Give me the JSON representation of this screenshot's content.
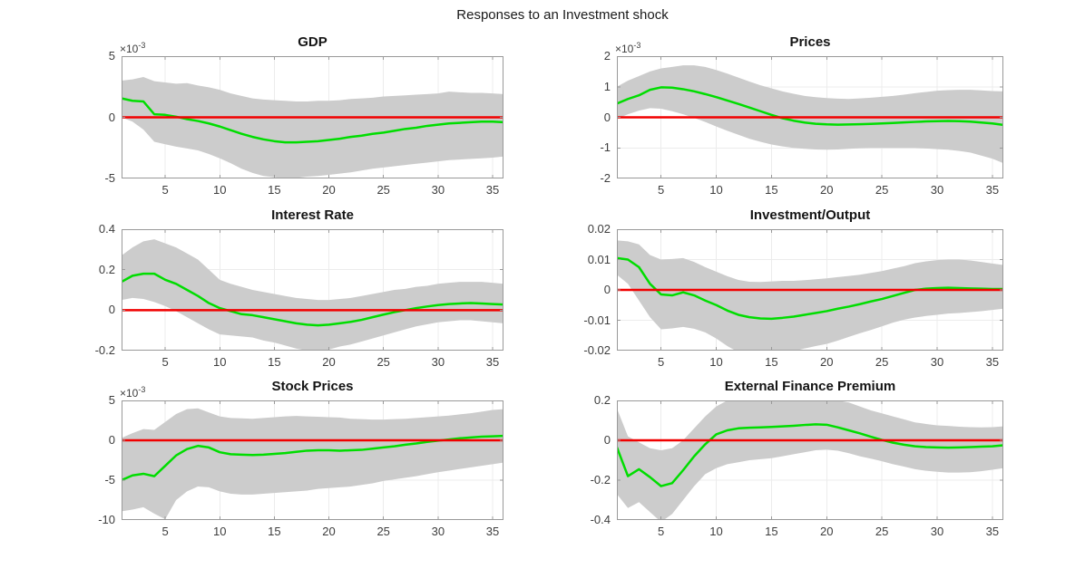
{
  "figure": {
    "title": "Responses to an Investment shock",
    "background": "#ffffff",
    "colors": {
      "median": "#00dd00",
      "zero_line": "#f10000",
      "band": "#cccccc",
      "grid": "#ececec",
      "axis": "#999999",
      "tick_text": "#3d3d3d",
      "title_text": "#141414"
    }
  },
  "chart_data": [
    {
      "type": "line",
      "title": "GDP",
      "exp": {
        "base": "×10",
        "power": "-3"
      },
      "xlim": [
        1,
        36
      ],
      "ylim": [
        -5,
        5
      ],
      "xticks": [
        5,
        10,
        15,
        20,
        25,
        30,
        35
      ],
      "xtick_labels": [
        "5",
        "10",
        "15",
        "20",
        "25",
        "30",
        "35"
      ],
      "yticks": [
        -5,
        0,
        5
      ],
      "ytick_labels": [
        "-5",
        "0",
        "5"
      ],
      "grid": true,
      "legend": null,
      "series": [
        {
          "name": "median",
          "values": [
            1.55,
            1.35,
            1.3,
            0.25,
            0.2,
            0.05,
            -0.15,
            -0.3,
            -0.5,
            -0.75,
            -1.05,
            -1.35,
            -1.6,
            -1.8,
            -1.95,
            -2.05,
            -2.05,
            -2.0,
            -1.95,
            -1.85,
            -1.75,
            -1.6,
            -1.5,
            -1.35,
            -1.25,
            -1.1,
            -0.95,
            -0.85,
            -0.7,
            -0.6,
            -0.5,
            -0.45,
            -0.4,
            -0.35,
            -0.35,
            -0.4
          ]
        },
        {
          "name": "band_upper",
          "values": [
            3.0,
            3.1,
            3.3,
            2.95,
            2.85,
            2.75,
            2.8,
            2.6,
            2.45,
            2.25,
            1.95,
            1.75,
            1.55,
            1.45,
            1.4,
            1.35,
            1.3,
            1.3,
            1.35,
            1.35,
            1.4,
            1.5,
            1.55,
            1.6,
            1.7,
            1.75,
            1.8,
            1.85,
            1.9,
            1.95,
            2.1,
            2.05,
            2.0,
            2.0,
            1.95,
            1.9
          ]
        },
        {
          "name": "band_lower",
          "values": [
            0.0,
            -0.35,
            -1.0,
            -2.0,
            -2.2,
            -2.4,
            -2.55,
            -2.7,
            -3.0,
            -3.35,
            -3.75,
            -4.2,
            -4.55,
            -4.8,
            -4.9,
            -5.0,
            -4.95,
            -4.85,
            -4.8,
            -4.7,
            -4.6,
            -4.5,
            -4.35,
            -4.2,
            -4.1,
            -4.0,
            -3.9,
            -3.8,
            -3.7,
            -3.6,
            -3.5,
            -3.45,
            -3.4,
            -3.35,
            -3.3,
            -3.2
          ]
        }
      ]
    },
    {
      "type": "line",
      "title": "Prices",
      "exp": {
        "base": "×10",
        "power": "-3"
      },
      "xlim": [
        1,
        36
      ],
      "ylim": [
        -2,
        2
      ],
      "xticks": [
        5,
        10,
        15,
        20,
        25,
        30,
        35
      ],
      "xtick_labels": [
        "5",
        "10",
        "15",
        "20",
        "25",
        "30",
        "35"
      ],
      "yticks": [
        -2,
        -1,
        0,
        1,
        2
      ],
      "ytick_labels": [
        "-2",
        "-1",
        "0",
        "1",
        "2"
      ],
      "grid": true,
      "legend": null,
      "series": [
        {
          "name": "median",
          "values": [
            0.45,
            0.6,
            0.72,
            0.9,
            0.98,
            0.97,
            0.92,
            0.85,
            0.76,
            0.66,
            0.55,
            0.44,
            0.32,
            0.2,
            0.08,
            -0.03,
            -0.11,
            -0.17,
            -0.21,
            -0.23,
            -0.24,
            -0.235,
            -0.225,
            -0.215,
            -0.2,
            -0.185,
            -0.165,
            -0.15,
            -0.135,
            -0.125,
            -0.12,
            -0.125,
            -0.14,
            -0.17,
            -0.2,
            -0.25
          ]
        },
        {
          "name": "band_upper",
          "values": [
            1.0,
            1.2,
            1.35,
            1.5,
            1.6,
            1.65,
            1.7,
            1.7,
            1.65,
            1.55,
            1.43,
            1.3,
            1.17,
            1.05,
            0.95,
            0.85,
            0.77,
            0.7,
            0.66,
            0.63,
            0.61,
            0.6,
            0.62,
            0.64,
            0.67,
            0.7,
            0.74,
            0.79,
            0.83,
            0.87,
            0.89,
            0.9,
            0.9,
            0.88,
            0.86,
            0.85
          ]
        },
        {
          "name": "band_lower",
          "values": [
            -0.05,
            0.1,
            0.22,
            0.3,
            0.28,
            0.2,
            0.1,
            -0.02,
            -0.15,
            -0.3,
            -0.44,
            -0.57,
            -0.7,
            -0.8,
            -0.89,
            -0.95,
            -1.0,
            -1.03,
            -1.05,
            -1.06,
            -1.05,
            -1.03,
            -1.01,
            -1.0,
            -1.0,
            -1.0,
            -1.0,
            -1.0,
            -1.02,
            -1.04,
            -1.06,
            -1.1,
            -1.15,
            -1.25,
            -1.35,
            -1.5
          ]
        }
      ]
    },
    {
      "type": "line",
      "title": "Interest Rate",
      "exp": null,
      "xlim": [
        1,
        36
      ],
      "ylim": [
        -0.2,
        0.4
      ],
      "xticks": [
        5,
        10,
        15,
        20,
        25,
        30,
        35
      ],
      "xtick_labels": [
        "5",
        "10",
        "15",
        "20",
        "25",
        "30",
        "35"
      ],
      "yticks": [
        -0.2,
        0,
        0.2,
        0.4
      ],
      "ytick_labels": [
        "-0.2",
        "0",
        "0.2",
        "0.4"
      ],
      "grid": true,
      "legend": null,
      "series": [
        {
          "name": "median",
          "values": [
            0.14,
            0.17,
            0.18,
            0.18,
            0.15,
            0.13,
            0.1,
            0.07,
            0.035,
            0.01,
            -0.005,
            -0.02,
            -0.025,
            -0.035,
            -0.045,
            -0.055,
            -0.065,
            -0.072,
            -0.075,
            -0.072,
            -0.065,
            -0.058,
            -0.048,
            -0.035,
            -0.022,
            -0.01,
            0.0,
            0.01,
            0.018,
            0.025,
            0.03,
            0.033,
            0.035,
            0.033,
            0.03,
            0.028
          ]
        },
        {
          "name": "band_upper",
          "values": [
            0.27,
            0.31,
            0.34,
            0.35,
            0.33,
            0.31,
            0.28,
            0.25,
            0.2,
            0.15,
            0.13,
            0.115,
            0.1,
            0.09,
            0.08,
            0.07,
            0.06,
            0.055,
            0.05,
            0.05,
            0.055,
            0.06,
            0.07,
            0.08,
            0.09,
            0.1,
            0.105,
            0.115,
            0.12,
            0.13,
            0.135,
            0.14,
            0.14,
            0.14,
            0.135,
            0.13
          ]
        },
        {
          "name": "band_lower",
          "values": [
            0.05,
            0.06,
            0.055,
            0.04,
            0.02,
            -0.005,
            -0.035,
            -0.065,
            -0.095,
            -0.12,
            -0.125,
            -0.13,
            -0.135,
            -0.15,
            -0.16,
            -0.175,
            -0.19,
            -0.2,
            -0.2,
            -0.195,
            -0.18,
            -0.17,
            -0.155,
            -0.14,
            -0.125,
            -0.11,
            -0.095,
            -0.08,
            -0.07,
            -0.06,
            -0.055,
            -0.05,
            -0.05,
            -0.055,
            -0.06,
            -0.065
          ]
        }
      ]
    },
    {
      "type": "line",
      "title": "Investment/Output",
      "exp": null,
      "xlim": [
        1,
        36
      ],
      "ylim": [
        -0.02,
        0.02
      ],
      "xticks": [
        5,
        10,
        15,
        20,
        25,
        30,
        35
      ],
      "xtick_labels": [
        "5",
        "10",
        "15",
        "20",
        "25",
        "30",
        "35"
      ],
      "yticks": [
        -0.02,
        -0.01,
        0,
        0.01,
        0.02
      ],
      "ytick_labels": [
        "-0.02",
        "-0.01",
        "0",
        "0.01",
        "0.02"
      ],
      "grid": true,
      "legend": null,
      "series": [
        {
          "name": "median",
          "values": [
            0.0105,
            0.01,
            0.0075,
            0.002,
            -0.0015,
            -0.0018,
            -0.0008,
            -0.0018,
            -0.0035,
            -0.005,
            -0.0068,
            -0.0082,
            -0.009,
            -0.0094,
            -0.0095,
            -0.0092,
            -0.0088,
            -0.0082,
            -0.0076,
            -0.007,
            -0.0062,
            -0.0055,
            -0.0047,
            -0.0038,
            -0.003,
            -0.002,
            -0.001,
            0.0,
            0.0004,
            0.0006,
            0.0007,
            0.0006,
            0.0005,
            0.0004,
            0.0003,
            0.0003
          ]
        },
        {
          "name": "band_upper",
          "values": [
            0.0163,
            0.016,
            0.015,
            0.0115,
            0.01,
            0.0102,
            0.0105,
            0.0092,
            0.0075,
            0.006,
            0.0045,
            0.0033,
            0.0027,
            0.0026,
            0.0028,
            0.003,
            0.003,
            0.0032,
            0.0035,
            0.0038,
            0.0042,
            0.0046,
            0.005,
            0.0056,
            0.0062,
            0.007,
            0.0078,
            0.0088,
            0.0094,
            0.0098,
            0.01,
            0.01,
            0.0097,
            0.0092,
            0.0087,
            0.0082
          ]
        },
        {
          "name": "band_lower",
          "values": [
            0.005,
            0.002,
            -0.0035,
            -0.009,
            -0.013,
            -0.0127,
            -0.0122,
            -0.0128,
            -0.014,
            -0.016,
            -0.0185,
            -0.0205,
            -0.0215,
            -0.022,
            -0.0215,
            -0.021,
            -0.0202,
            -0.0193,
            -0.0185,
            -0.0178,
            -0.0167,
            -0.0155,
            -0.0143,
            -0.0132,
            -0.012,
            -0.0108,
            -0.0098,
            -0.0091,
            -0.0086,
            -0.0082,
            -0.0078,
            -0.0076,
            -0.0073,
            -0.007,
            -0.0066,
            -0.0062
          ]
        }
      ]
    },
    {
      "type": "line",
      "title": "Stock Prices",
      "exp": {
        "base": "×10",
        "power": "-3"
      },
      "xlim": [
        1,
        36
      ],
      "ylim": [
        -10,
        5
      ],
      "xticks": [
        5,
        10,
        15,
        20,
        25,
        30,
        35
      ],
      "xtick_labels": [
        "5",
        "10",
        "15",
        "20",
        "25",
        "30",
        "35"
      ],
      "yticks": [
        -10,
        -5,
        0,
        5
      ],
      "ytick_labels": [
        "-10",
        "-5",
        "0",
        "5"
      ],
      "grid": true,
      "legend": null,
      "series": [
        {
          "name": "median",
          "values": [
            -5.0,
            -4.4,
            -4.2,
            -4.5,
            -3.2,
            -1.9,
            -1.1,
            -0.7,
            -0.9,
            -1.5,
            -1.75,
            -1.8,
            -1.85,
            -1.8,
            -1.7,
            -1.6,
            -1.45,
            -1.3,
            -1.25,
            -1.25,
            -1.3,
            -1.25,
            -1.2,
            -1.05,
            -0.9,
            -0.75,
            -0.55,
            -0.4,
            -0.2,
            -0.05,
            0.1,
            0.25,
            0.35,
            0.45,
            0.5,
            0.55
          ]
        },
        {
          "name": "band_upper",
          "values": [
            0.3,
            0.9,
            1.4,
            1.3,
            2.3,
            3.3,
            3.9,
            4.0,
            3.5,
            3.0,
            2.8,
            2.75,
            2.7,
            2.8,
            2.9,
            3.0,
            3.05,
            3.0,
            2.95,
            2.9,
            2.85,
            2.7,
            2.65,
            2.6,
            2.6,
            2.65,
            2.7,
            2.8,
            2.9,
            3.0,
            3.1,
            3.25,
            3.4,
            3.6,
            3.8,
            3.9
          ]
        },
        {
          "name": "band_lower",
          "values": [
            -8.9,
            -8.7,
            -8.4,
            -9.2,
            -9.9,
            -7.5,
            -6.4,
            -5.8,
            -5.9,
            -6.4,
            -6.7,
            -6.8,
            -6.8,
            -6.7,
            -6.6,
            -6.5,
            -6.4,
            -6.3,
            -6.1,
            -6.0,
            -5.9,
            -5.8,
            -5.6,
            -5.4,
            -5.1,
            -4.9,
            -4.7,
            -4.5,
            -4.25,
            -4.0,
            -3.8,
            -3.6,
            -3.4,
            -3.2,
            -3.0,
            -2.8
          ]
        }
      ]
    },
    {
      "type": "line",
      "title": "External Finance Premium",
      "exp": null,
      "xlim": [
        1,
        36
      ],
      "ylim": [
        -0.4,
        0.2
      ],
      "xticks": [
        5,
        10,
        15,
        20,
        25,
        30,
        35
      ],
      "xtick_labels": [
        "5",
        "10",
        "15",
        "20",
        "25",
        "30",
        "35"
      ],
      "yticks": [
        -0.4,
        -0.2,
        0,
        0.2
      ],
      "ytick_labels": [
        "-0.4",
        "-0.2",
        "0",
        "0.2"
      ],
      "grid": true,
      "legend": null,
      "series": [
        {
          "name": "median",
          "values": [
            -0.035,
            -0.18,
            -0.145,
            -0.185,
            -0.23,
            -0.215,
            -0.15,
            -0.08,
            -0.02,
            0.03,
            0.05,
            0.06,
            0.063,
            0.065,
            0.067,
            0.07,
            0.073,
            0.077,
            0.08,
            0.078,
            0.065,
            0.05,
            0.035,
            0.018,
            0.002,
            -0.012,
            -0.022,
            -0.03,
            -0.034,
            -0.036,
            -0.037,
            -0.036,
            -0.034,
            -0.032,
            -0.03,
            -0.025
          ]
        },
        {
          "name": "band_upper",
          "values": [
            0.16,
            0.02,
            -0.01,
            -0.04,
            -0.05,
            -0.04,
            0.0,
            0.06,
            0.12,
            0.17,
            0.2,
            0.21,
            0.215,
            0.215,
            0.215,
            0.215,
            0.215,
            0.215,
            0.215,
            0.21,
            0.2,
            0.19,
            0.17,
            0.15,
            0.135,
            0.12,
            0.105,
            0.09,
            0.082,
            0.075,
            0.072,
            0.068,
            0.066,
            0.065,
            0.066,
            0.07
          ]
        },
        {
          "name": "band_lower",
          "values": [
            -0.27,
            -0.34,
            -0.31,
            -0.36,
            -0.41,
            -0.37,
            -0.3,
            -0.23,
            -0.17,
            -0.14,
            -0.12,
            -0.11,
            -0.1,
            -0.095,
            -0.09,
            -0.08,
            -0.07,
            -0.06,
            -0.05,
            -0.047,
            -0.052,
            -0.065,
            -0.08,
            -0.092,
            -0.105,
            -0.12,
            -0.132,
            -0.145,
            -0.153,
            -0.158,
            -0.162,
            -0.162,
            -0.16,
            -0.155,
            -0.148,
            -0.14
          ]
        }
      ]
    }
  ]
}
